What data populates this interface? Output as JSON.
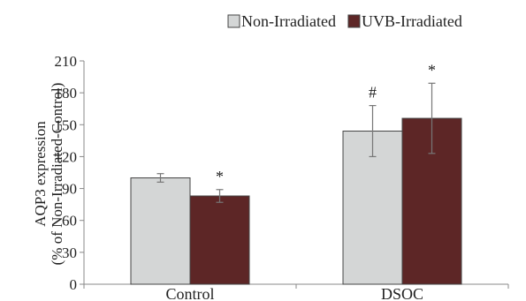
{
  "chart_data": {
    "type": "bar",
    "categories": [
      "Control",
      "DSOC"
    ],
    "series": [
      {
        "name": "Non-Irradiated",
        "color": "#d4d6d6",
        "values": [
          100,
          144
        ],
        "error": [
          4,
          24
        ],
        "annotations": [
          "",
          "#"
        ]
      },
      {
        "name": "UVB-Irradiated",
        "color": "#5d2626",
        "values": [
          83,
          156
        ],
        "error": [
          6,
          33
        ],
        "annotations": [
          "*",
          "*"
        ]
      }
    ],
    "ylabel_line1": "AQP3 expression",
    "ylabel_line2": "(% of Non-Irradiated-Control)",
    "ylim": [
      0,
      210
    ],
    "yticks": [
      0,
      30,
      60,
      90,
      120,
      150,
      180,
      210
    ],
    "legend_position": "top-right",
    "grid": false
  }
}
